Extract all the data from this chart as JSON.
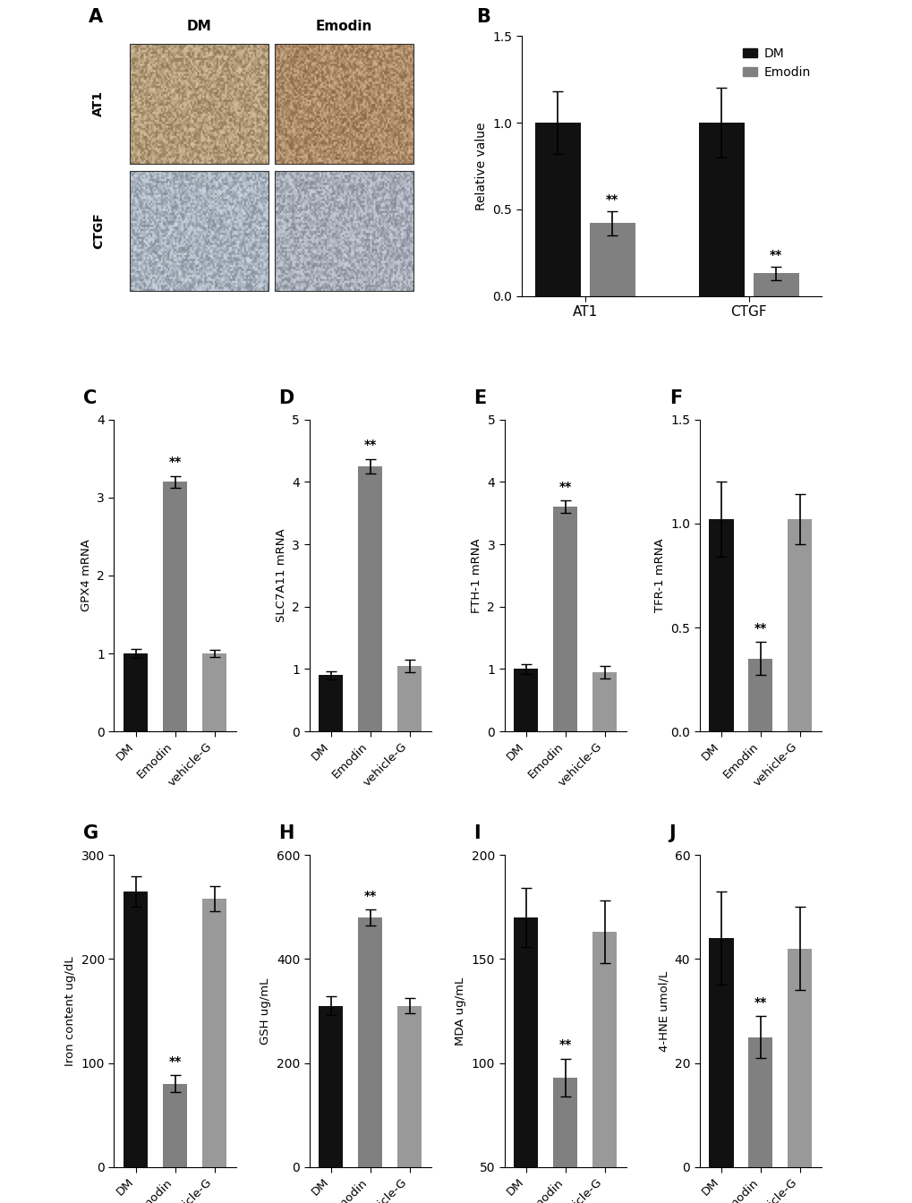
{
  "panel_B": {
    "categories": [
      "AT1",
      "CTGF"
    ],
    "DM_values": [
      1.0,
      1.0
    ],
    "Emodin_values": [
      0.42,
      0.13
    ],
    "DM_errors": [
      0.18,
      0.2
    ],
    "Emodin_errors": [
      0.07,
      0.04
    ],
    "ylabel": "Relative value",
    "ylim": [
      0,
      1.5
    ],
    "yticks": [
      0.0,
      0.5,
      1.0,
      1.5
    ],
    "sig_emodin": [
      "**",
      "**"
    ]
  },
  "panel_C": {
    "categories": [
      "DM",
      "Emodin",
      "vehicle-G"
    ],
    "values": [
      1.0,
      3.2,
      1.0
    ],
    "errors": [
      0.055,
      0.075,
      0.045
    ],
    "colors": [
      "#111111",
      "#808080",
      "#999999"
    ],
    "ylabel": "GPX4 mRNA",
    "ylim": [
      0,
      4
    ],
    "yticks": [
      0,
      1,
      2,
      3,
      4
    ],
    "sig": [
      null,
      "**",
      null
    ]
  },
  "panel_D": {
    "categories": [
      "DM",
      "Emodin",
      "vehicle-G"
    ],
    "values": [
      0.9,
      4.25,
      1.05
    ],
    "errors": [
      0.06,
      0.12,
      0.1
    ],
    "colors": [
      "#111111",
      "#808080",
      "#999999"
    ],
    "ylabel": "SLC7A11 mRNA",
    "ylim": [
      0,
      5
    ],
    "yticks": [
      0,
      1,
      2,
      3,
      4,
      5
    ],
    "sig": [
      null,
      "**",
      null
    ]
  },
  "panel_E": {
    "categories": [
      "DM",
      "Emodin",
      "vehicle-G"
    ],
    "values": [
      1.0,
      3.6,
      0.95
    ],
    "errors": [
      0.08,
      0.1,
      0.1
    ],
    "colors": [
      "#111111",
      "#808080",
      "#999999"
    ],
    "ylabel": "FTH-1 mRNA",
    "ylim": [
      0,
      5
    ],
    "yticks": [
      0,
      1,
      2,
      3,
      4,
      5
    ],
    "sig": [
      null,
      "**",
      null
    ]
  },
  "panel_F": {
    "categories": [
      "DM",
      "Emodin",
      "vehicle-G"
    ],
    "values": [
      1.02,
      0.35,
      1.02
    ],
    "errors": [
      0.18,
      0.08,
      0.12
    ],
    "colors": [
      "#111111",
      "#808080",
      "#999999"
    ],
    "ylabel": "TFR-1 mRNA",
    "ylim": [
      0.0,
      1.5
    ],
    "yticks": [
      0.0,
      0.5,
      1.0,
      1.5
    ],
    "sig": [
      null,
      "**",
      null
    ]
  },
  "panel_G": {
    "categories": [
      "DM",
      "Emodin",
      "vehicle-G"
    ],
    "values": [
      265,
      80,
      258
    ],
    "errors": [
      15,
      8,
      12
    ],
    "colors": [
      "#111111",
      "#808080",
      "#999999"
    ],
    "ylabel": "Iron content ug/dL",
    "ylim": [
      0,
      300
    ],
    "yticks": [
      0,
      100,
      200,
      300
    ],
    "sig": [
      null,
      "**",
      null
    ]
  },
  "panel_H": {
    "categories": [
      "DM",
      "Emodin",
      "vehicle-G"
    ],
    "values": [
      310,
      480,
      310
    ],
    "errors": [
      18,
      15,
      15
    ],
    "colors": [
      "#111111",
      "#808080",
      "#999999"
    ],
    "ylabel": "GSH ug/mL",
    "ylim": [
      0,
      600
    ],
    "yticks": [
      0,
      200,
      400,
      600
    ],
    "sig": [
      null,
      "**",
      null
    ]
  },
  "panel_I": {
    "categories": [
      "DM",
      "Emodin",
      "vehicle-G"
    ],
    "values": [
      170,
      93,
      163
    ],
    "errors": [
      14,
      9,
      15
    ],
    "colors": [
      "#111111",
      "#808080",
      "#999999"
    ],
    "ylabel": "MDA ug/mL",
    "ylim": [
      50,
      200
    ],
    "yticks": [
      50,
      100,
      150,
      200
    ],
    "sig": [
      null,
      "**",
      null
    ]
  },
  "panel_J": {
    "categories": [
      "DM",
      "Emodin",
      "vehicle-G"
    ],
    "values": [
      44,
      25,
      42
    ],
    "errors": [
      9,
      4,
      8
    ],
    "colors": [
      "#111111",
      "#808080",
      "#999999"
    ],
    "ylabel": "4-HNE umol/L",
    "ylim": [
      0,
      60
    ],
    "yticks": [
      0,
      20,
      40,
      60
    ],
    "sig": [
      null,
      "**",
      null
    ]
  },
  "bar_color_black": "#111111",
  "bar_color_gray": "#808080",
  "bar_color_lightgray": "#999999",
  "image_bg": "#FFFFFF"
}
